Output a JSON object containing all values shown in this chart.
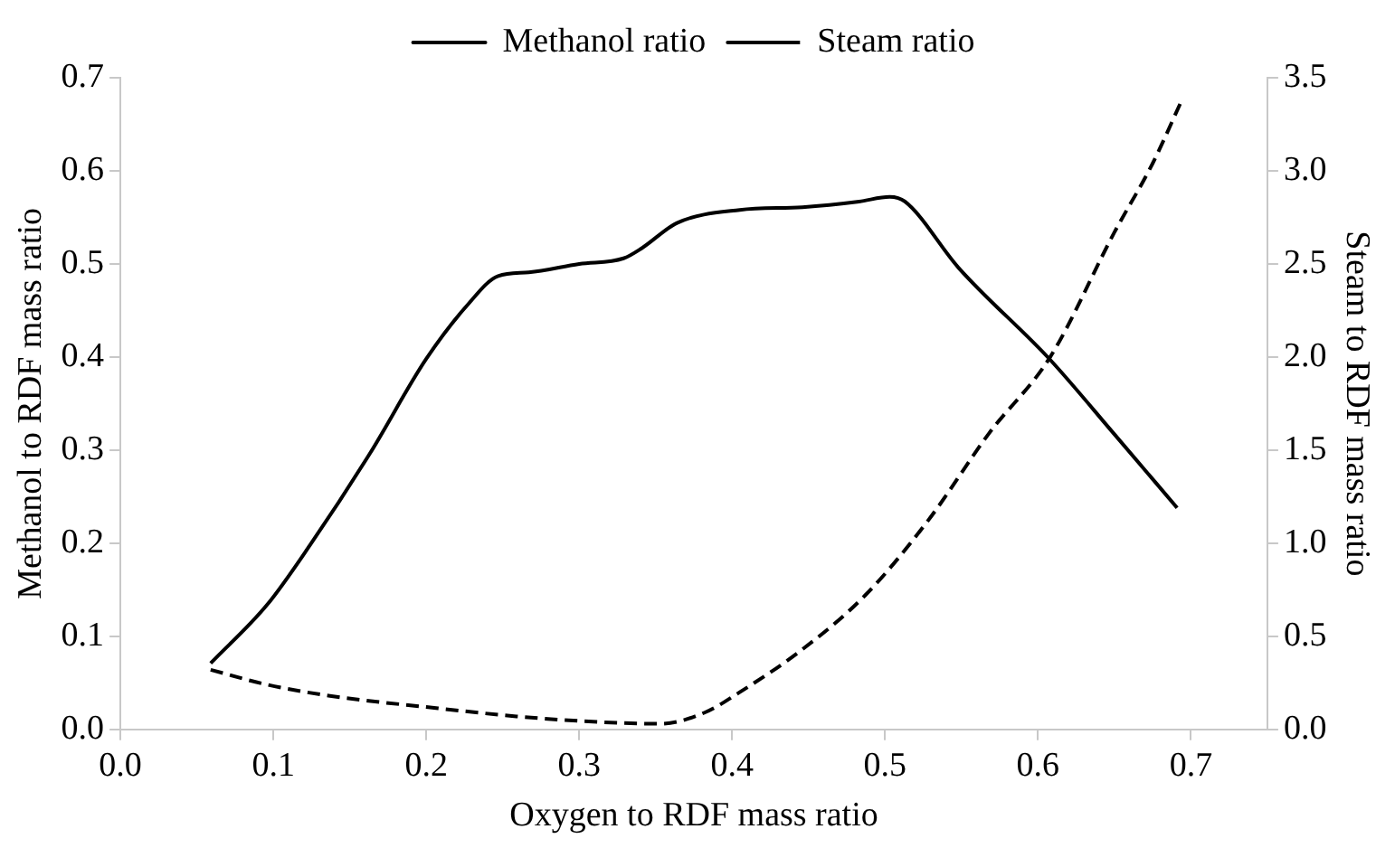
{
  "chart_data": {
    "type": "line",
    "xlabel": "Oxygen to RDF mass ratio",
    "ylabel": "Methanol to RDF mass ratio",
    "y2label": "Steam to RDF mass ratio",
    "xlim": [
      0,
      0.75
    ],
    "xticks": [
      {
        "value": 0,
        "label": "0.0"
      },
      0.1,
      0.2,
      0.3,
      0.4,
      0.5,
      0.6,
      0.7
    ],
    "ylim": [
      0,
      0.7
    ],
    "yticks": [
      {
        "value": 0,
        "label": "0.0"
      },
      0.1,
      0.2,
      0.3,
      0.4,
      0.5,
      0.6,
      0.7
    ],
    "y2lim": [
      0,
      3.5
    ],
    "y2ticks": [
      {
        "value": 0,
        "label": "0.0"
      },
      0.5,
      {
        "value": 1,
        "label": "1.0"
      },
      1.5,
      {
        "value": 2,
        "label": "2.0"
      },
      2.5,
      {
        "value": 3,
        "label": "3.0"
      },
      3.5
    ],
    "grid": false,
    "legend": "top",
    "marker": "none",
    "series": [
      {
        "name": "Methanol ratio",
        "color": "#000000",
        "line_style": "solid",
        "x": [
          0.059,
          0.096,
          0.124,
          0.163,
          0.2,
          0.227,
          0.247,
          0.267,
          0.3,
          0.329,
          0.341,
          0.364,
          0.405,
          0.446,
          0.483,
          0.503,
          0.513,
          0.548,
          0.608,
          0.65,
          0.691
        ],
        "values": [
          0.071,
          0.134,
          0.198,
          0.296,
          0.398,
          0.456,
          0.487,
          0.491,
          0.5,
          0.506,
          0.517,
          0.544,
          0.558,
          0.561,
          0.567,
          0.572,
          0.567,
          0.496,
          0.397,
          0.317,
          0.238
        ]
      },
      {
        "name": "Steam ratio",
        "color": "#000000",
        "line_style": "dashed",
        "axis": "y2",
        "x": [
          0.059,
          0.096,
          0.137,
          0.2,
          0.259,
          0.312,
          0.353,
          0.382,
          0.405,
          0.446,
          0.487,
          0.528,
          0.568,
          0.608,
          0.65,
          0.675,
          0.693
        ],
        "values": [
          0.32,
          0.24,
          0.18,
          0.12,
          0.07,
          0.04,
          0.03,
          0.09,
          0.2,
          0.43,
          0.72,
          1.12,
          1.59,
          2.0,
          2.67,
          3.04,
          3.36
        ]
      }
    ]
  }
}
